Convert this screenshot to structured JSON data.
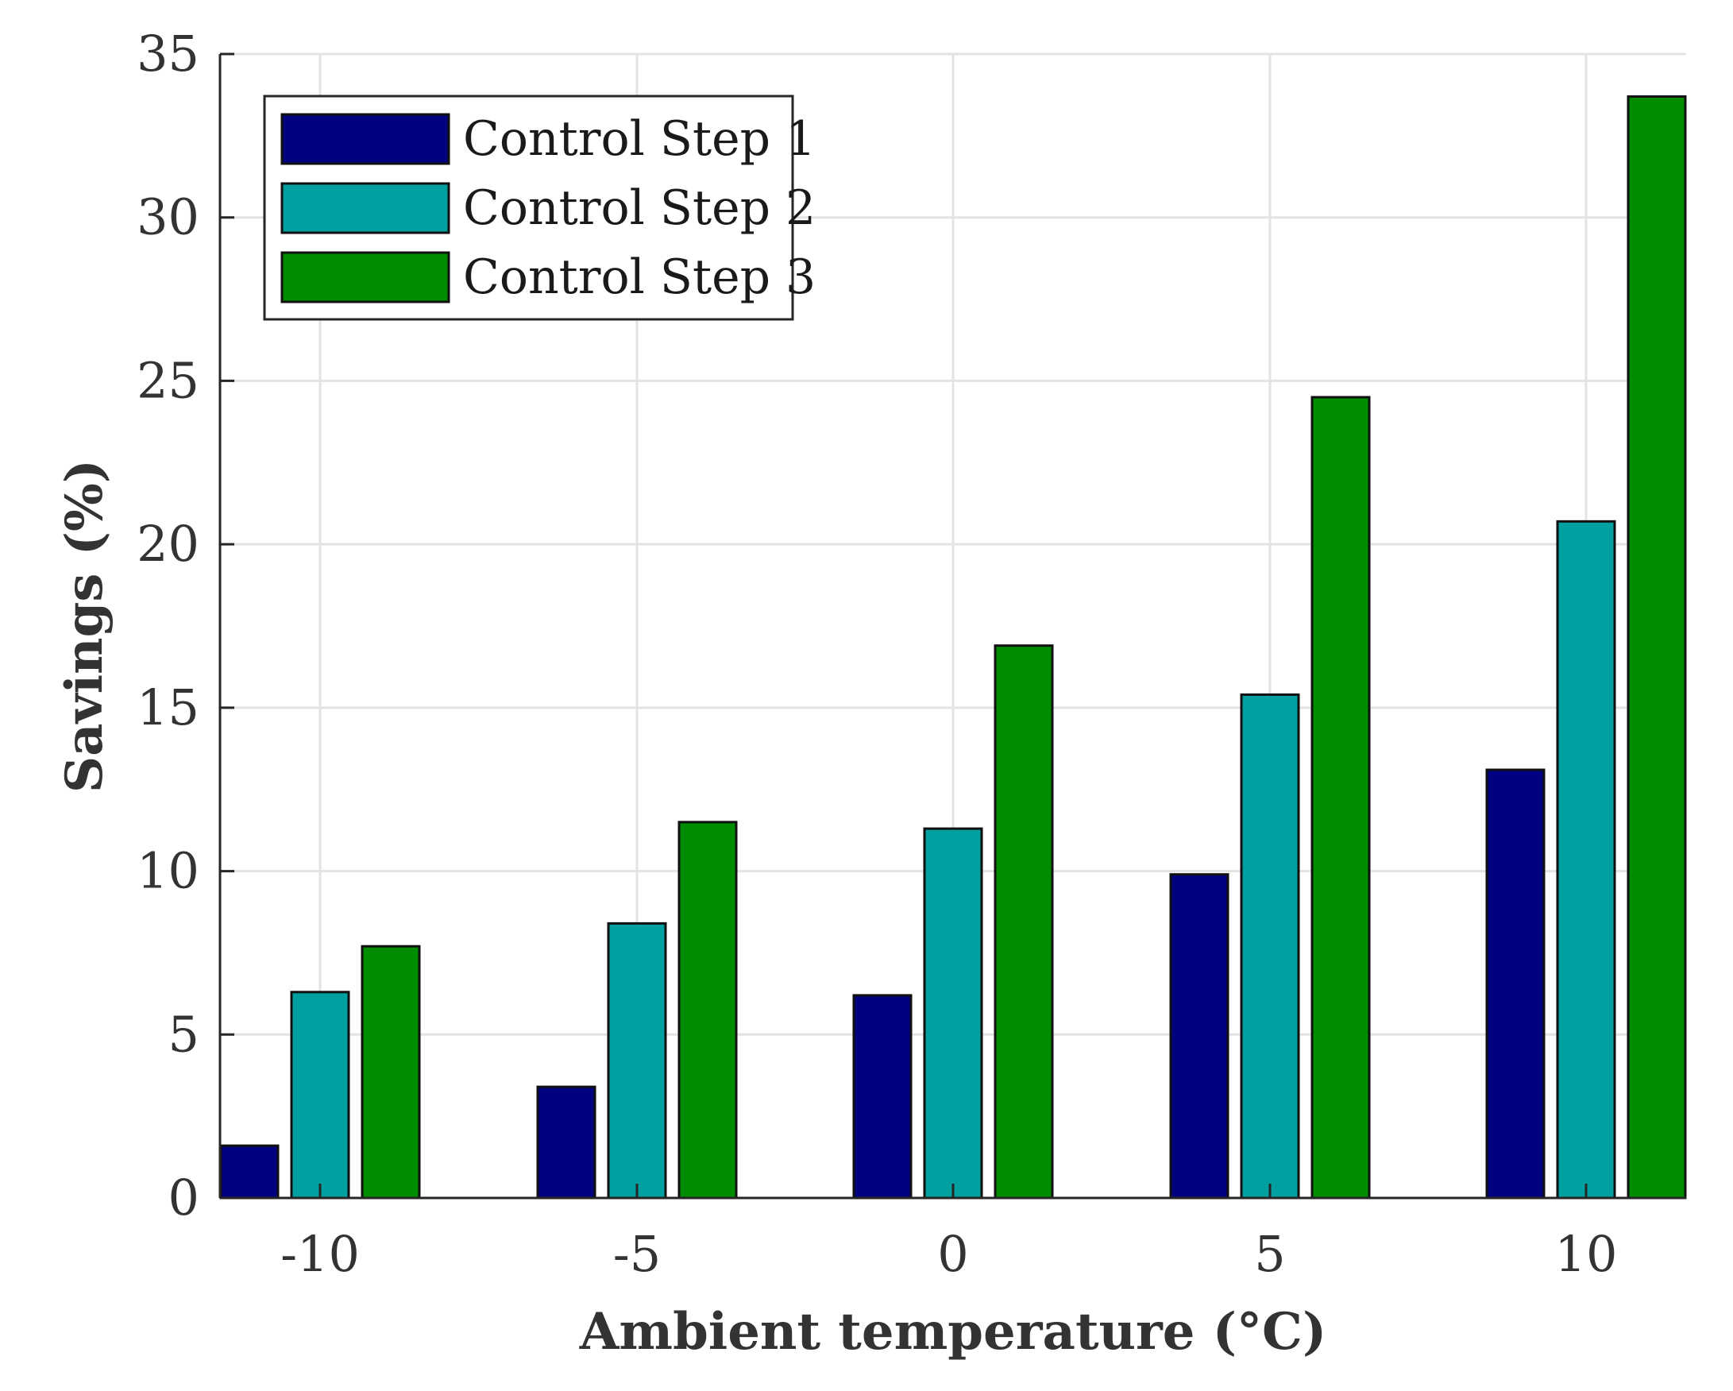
{
  "chart_data": {
    "type": "bar",
    "title": "",
    "xlabel": "Ambient temperature (°C)",
    "ylabel": "Savings (%)",
    "categories": [
      "-10",
      "-5",
      "0",
      "5",
      "10"
    ],
    "ylim": [
      0,
      35
    ],
    "yticks": [
      0,
      5,
      10,
      15,
      20,
      25,
      30,
      35
    ],
    "grid": true,
    "legend_position": "top-left",
    "series": [
      {
        "name": "Control Step 1",
        "color": "#000080",
        "values": [
          1.6,
          3.4,
          6.2,
          9.9,
          13.1
        ]
      },
      {
        "name": "Control Step 2",
        "color": "#00A0A0",
        "values": [
          6.3,
          8.4,
          11.3,
          15.4,
          20.7
        ]
      },
      {
        "name": "Control Step 3",
        "color": "#008C00",
        "values": [
          7.7,
          11.5,
          16.9,
          24.5,
          33.7
        ]
      }
    ]
  }
}
